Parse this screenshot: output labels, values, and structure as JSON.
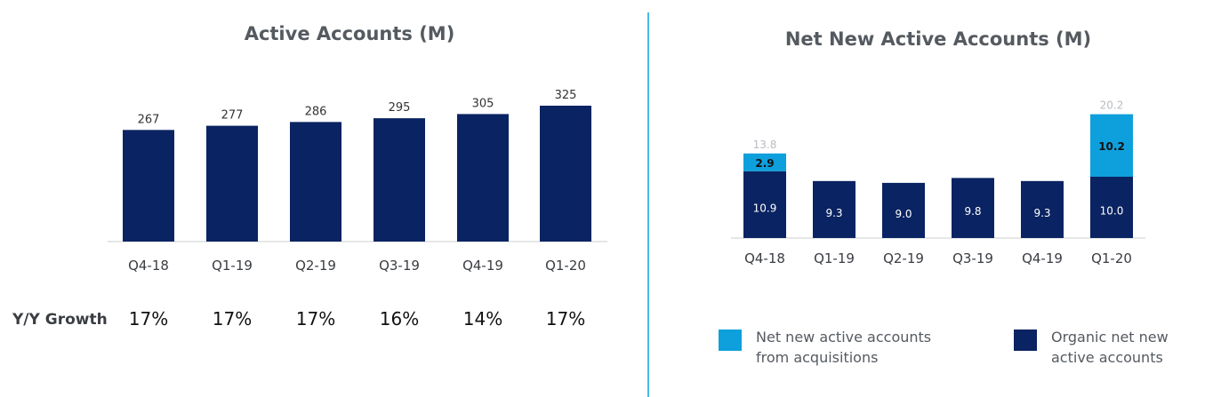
{
  "chart_data": [
    {
      "type": "bar",
      "title": "Active Accounts (M)",
      "categories": [
        "Q4-18",
        "Q1-19",
        "Q2-19",
        "Q3-19",
        "Q4-19",
        "Q1-20"
      ],
      "values": [
        267,
        277,
        286,
        295,
        305,
        325
      ],
      "value_labels": [
        "267",
        "277",
        "286",
        "295",
        "305",
        "325"
      ],
      "growth_label": "Y/Y Growth",
      "growth": [
        "17%",
        "17%",
        "17%",
        "16%",
        "14%",
        "17%"
      ],
      "color": "#0a2362"
    },
    {
      "type": "bar",
      "stacked": true,
      "title": "Net New Active Accounts (M)",
      "categories": [
        "Q4-18",
        "Q1-19",
        "Q2-19",
        "Q3-19",
        "Q4-19",
        "Q1-20"
      ],
      "series": [
        {
          "name": "Organic net new active accounts",
          "values": [
            10.9,
            9.3,
            9.0,
            9.8,
            9.3,
            10.0
          ],
          "labels": [
            "10.9",
            "9.3",
            "9.0",
            "9.8",
            "9.3",
            "10.0"
          ],
          "color": "#0a2362"
        },
        {
          "name": "Net new active accounts from acquisitions",
          "values": [
            2.9,
            0,
            0,
            0,
            0,
            10.2
          ],
          "labels": [
            "2.9",
            "",
            "",
            "",
            "",
            "10.2"
          ],
          "color": "#0ea0dc"
        }
      ],
      "totals": [
        13.8,
        null,
        null,
        null,
        null,
        20.2
      ],
      "total_labels": [
        "13.8",
        "",
        "",
        "",
        "",
        "20.2"
      ],
      "legend": [
        {
          "lines": [
            "Net new active accounts",
            "from acquisitions"
          ],
          "color": "#0ea0dc"
        },
        {
          "lines": [
            "Organic net new",
            "active accounts"
          ],
          "color": "#0a2362"
        }
      ],
      "legend_position": "bottom"
    }
  ],
  "divider_color": "#0ea0dc"
}
